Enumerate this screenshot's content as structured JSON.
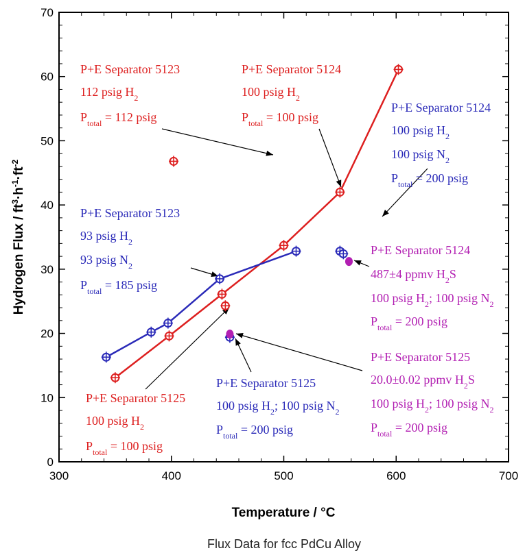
{
  "chart_data": {
    "type": "scatter",
    "title": "",
    "caption": "Flux Data for fcc PdCu Alloy",
    "xlabel": "Temperature / °C",
    "ylabel_parts": [
      "Hydrogen Flux / ft",
      "3",
      "·h",
      "-1",
      "·ft",
      "-2"
    ],
    "xlim": [
      300,
      700
    ],
    "ylim": [
      0,
      70
    ],
    "xticks": [
      300,
      400,
      500,
      600,
      700
    ],
    "yticks": [
      0,
      10,
      20,
      30,
      40,
      50,
      60,
      70
    ],
    "grid": false,
    "colors": {
      "red": "#dd1f1f",
      "blue": "#2a2ab8",
      "magenta": "#b21fb2"
    },
    "series": [
      {
        "id": "red-line",
        "color": "red",
        "connected": true,
        "points": [
          [
            350,
            13.1
          ],
          [
            398,
            19.6
          ],
          [
            445,
            26.1
          ],
          [
            500,
            33.7
          ],
          [
            550,
            42.0
          ],
          [
            602,
            61.1
          ]
        ]
      },
      {
        "id": "blue-line",
        "color": "blue",
        "connected": true,
        "points": [
          [
            342,
            16.3
          ],
          [
            382,
            20.2
          ],
          [
            397,
            21.6
          ],
          [
            443,
            28.5
          ],
          [
            511,
            32.8
          ]
        ]
      },
      {
        "id": "red-5123",
        "color": "red",
        "connected": false,
        "points": [
          [
            402,
            46.8
          ]
        ]
      },
      {
        "id": "red-5125",
        "color": "red",
        "connected": false,
        "points": [
          [
            448,
            24.3
          ]
        ]
      },
      {
        "id": "blue-5124",
        "color": "blue",
        "connected": false,
        "points": [
          [
            550,
            32.8
          ],
          [
            553,
            32.4
          ]
        ]
      },
      {
        "id": "blue-5125",
        "color": "blue",
        "connected": false,
        "points": [
          [
            452,
            19.4
          ]
        ]
      },
      {
        "id": "mag-5124",
        "color": "magenta",
        "connected": false,
        "points": [
          [
            558,
            31.2
          ]
        ]
      },
      {
        "id": "mag-5125",
        "color": "magenta",
        "connected": false,
        "points": [
          [
            452,
            19.9
          ]
        ]
      }
    ],
    "annotations": [
      {
        "id": "ann-red-5123",
        "color": "red",
        "lines": [
          [
            {
              "t": "P+E Separator 5123"
            }
          ],
          [
            {
              "t": "112 psig H"
            },
            {
              "t": "2",
              "sub": true
            }
          ],
          [
            {
              "t": "P"
            },
            {
              "t": "total",
              "sub": true
            },
            {
              "t": " = 112 psig"
            }
          ]
        ]
      },
      {
        "id": "ann-red-5124",
        "color": "red",
        "lines": [
          [
            {
              "t": "P+E Separator 5124"
            }
          ],
          [
            {
              "t": "100 psig H"
            },
            {
              "t": "2",
              "sub": true
            }
          ],
          [
            {
              "t": "P"
            },
            {
              "t": "total",
              "sub": true
            },
            {
              "t": " = 100 psig"
            }
          ]
        ]
      },
      {
        "id": "ann-blue-5124",
        "color": "blue",
        "lines": [
          [
            {
              "t": "P+E Separator 5124"
            }
          ],
          [
            {
              "t": "100 psig H"
            },
            {
              "t": "2",
              "sub": true
            }
          ],
          [
            {
              "t": "100 psig N"
            },
            {
              "t": "2",
              "sub": true
            }
          ],
          [
            {
              "t": "P"
            },
            {
              "t": "total",
              "sub": true
            },
            {
              "t": " = 200 psig"
            }
          ]
        ]
      },
      {
        "id": "ann-blue-5123",
        "color": "blue",
        "lines": [
          [
            {
              "t": "P+E Separator 5123"
            }
          ],
          [
            {
              "t": "93 psig H"
            },
            {
              "t": "2",
              "sub": true
            }
          ],
          [
            {
              "t": "93 psig N"
            },
            {
              "t": "2",
              "sub": true
            }
          ],
          [
            {
              "t": "P"
            },
            {
              "t": "total",
              "sub": true
            },
            {
              "t": " = 185 psig"
            }
          ]
        ]
      },
      {
        "id": "ann-mag-5124",
        "color": "magenta",
        "lines": [
          [
            {
              "t": "P+E Separator 5124"
            }
          ],
          [
            {
              "t": "487±4 ppmv H"
            },
            {
              "t": "2",
              "sub": true
            },
            {
              "t": "S"
            }
          ],
          [
            {
              "t": "100 psig H"
            },
            {
              "t": "2",
              "sub": true
            },
            {
              "t": "; 100 psig N"
            },
            {
              "t": "2",
              "sub": true
            }
          ],
          [
            {
              "t": "P"
            },
            {
              "t": "total",
              "sub": true
            },
            {
              "t": " = 200 psig"
            }
          ]
        ]
      },
      {
        "id": "ann-mag-5125",
        "color": "magenta",
        "lines": [
          [
            {
              "t": "P+E Separator 5125"
            }
          ],
          [
            {
              "t": "20.0±0.02 ppmv H"
            },
            {
              "t": "2",
              "sub": true
            },
            {
              "t": "S"
            }
          ],
          [
            {
              "t": "100 psig H"
            },
            {
              "t": "2",
              "sub": true
            },
            {
              "t": "; 100 psig N"
            },
            {
              "t": "2",
              "sub": true
            }
          ],
          [
            {
              "t": "P"
            },
            {
              "t": "total",
              "sub": true
            },
            {
              "t": " = 200 psig"
            }
          ]
        ]
      },
      {
        "id": "ann-blue-5125",
        "color": "blue",
        "lines": [
          [
            {
              "t": "P+E Separator 5125"
            }
          ],
          [
            {
              "t": "100 psig H"
            },
            {
              "t": "2",
              "sub": true
            },
            {
              "t": "; 100 psig N"
            },
            {
              "t": "2",
              "sub": true
            }
          ],
          [
            {
              "t": "P"
            },
            {
              "t": "total",
              "sub": true
            },
            {
              "t": " = 200 psig"
            }
          ]
        ]
      },
      {
        "id": "ann-red-5125",
        "color": "red",
        "lines": [
          [
            {
              "t": "P+E Separator 5125"
            }
          ],
          [
            {
              "t": "100 psig H"
            },
            {
              "t": "2",
              "sub": true
            }
          ],
          [
            {
              "t": "P"
            },
            {
              "t": "total",
              "sub": true
            },
            {
              "t": " = 100 psig"
            }
          ]
        ]
      }
    ]
  }
}
